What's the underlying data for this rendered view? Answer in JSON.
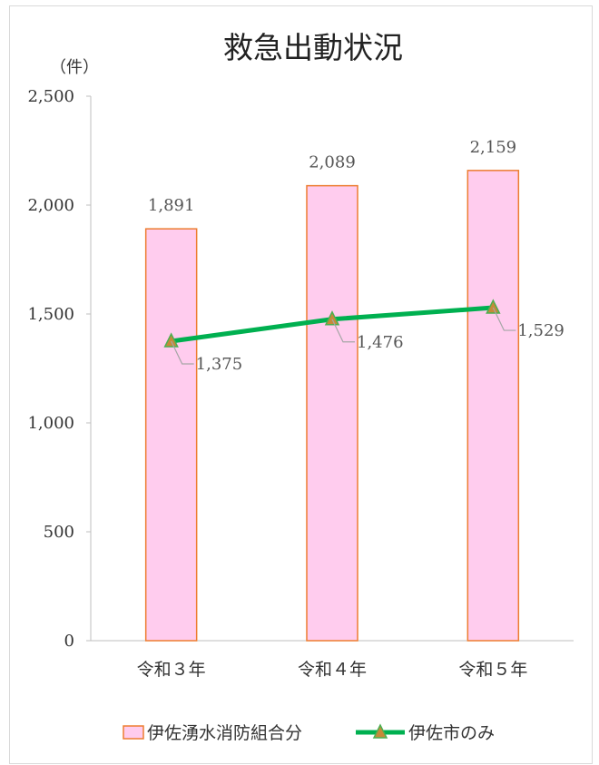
{
  "chart_data": {
    "type": "bar+line",
    "title": "救急出動状況",
    "unit_label": "（件）",
    "categories": [
      "令和３年",
      "令和４年",
      "令和５年"
    ],
    "y_ticks": [
      "0",
      "500",
      "1,000",
      "1,500",
      "2,000",
      "2,500"
    ],
    "ylim": [
      0,
      2500
    ],
    "grid": false,
    "legend_position": "bottom",
    "series": [
      {
        "name": "伊佐湧水消防組合分",
        "kind": "bar",
        "values": [
          1891,
          2089,
          2159
        ],
        "labels": [
          "1,891",
          "2,089",
          "2,159"
        ],
        "fill": "#ffccee",
        "stroke": "#ed7d31"
      },
      {
        "name": "伊佐市のみ",
        "kind": "line",
        "values": [
          1375,
          1476,
          1529
        ],
        "labels": [
          "1,375",
          "1,476",
          "1,529"
        ],
        "line_color": "#00b050",
        "marker_fill": "#c58a3a",
        "marker_stroke": "#4caf50"
      }
    ]
  }
}
